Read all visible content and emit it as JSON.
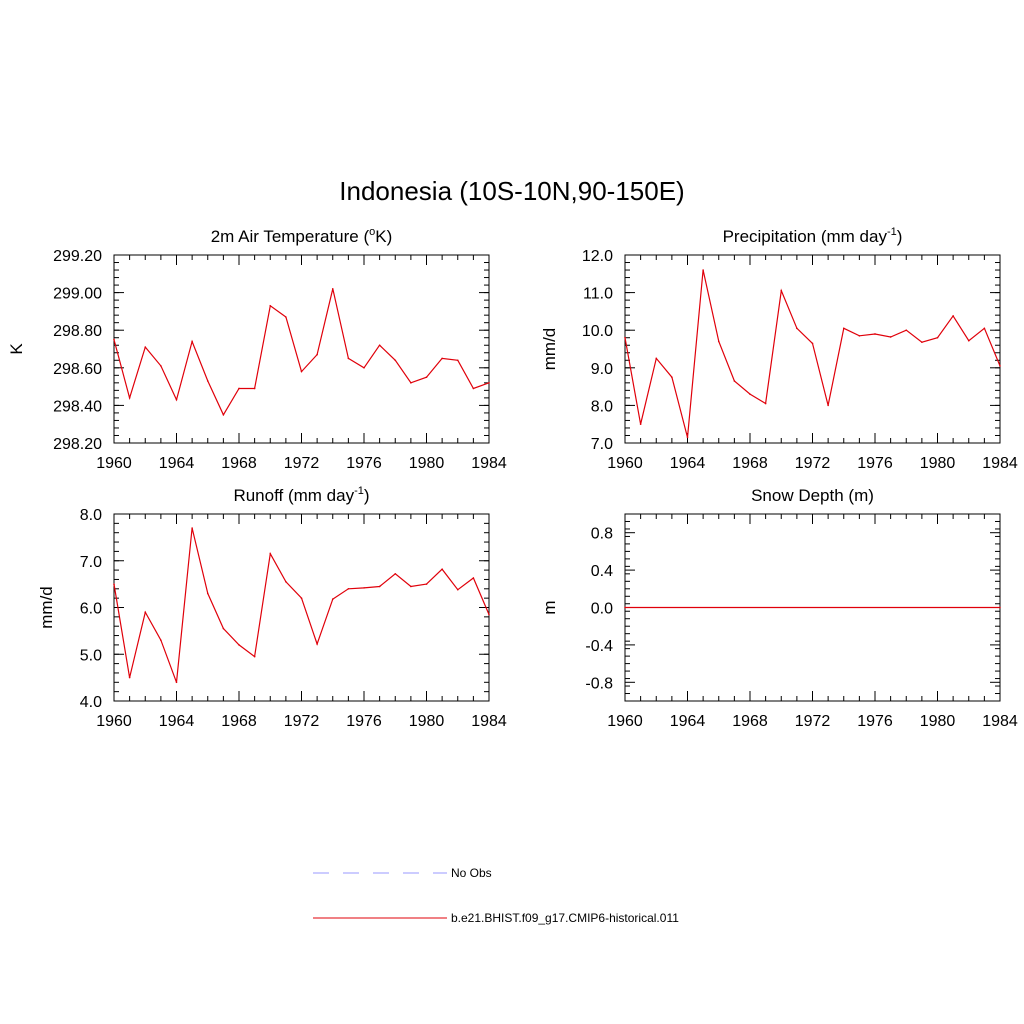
{
  "title": "Indonesia (10S-10N,90-150E)",
  "colors": {
    "series": "#e0000a",
    "obs": "#9999ff",
    "axis": "#000000"
  },
  "chart_data": [
    {
      "type": "line",
      "title": "2m Air Temperature (°K)",
      "title_parts": [
        "2m Air Temperature (",
        "o",
        "K)"
      ],
      "ylabel": "K",
      "xlim": [
        1960,
        1984
      ],
      "ylim": [
        298.2,
        299.2
      ],
      "xticks": [
        "1960",
        "1964",
        "1968",
        "1972",
        "1976",
        "1980",
        "1984"
      ],
      "yticks": [
        "298.20",
        "298.40",
        "298.60",
        "298.80",
        "299.00",
        "299.20"
      ],
      "series": [
        {
          "x": [
            1960,
            1961,
            1962,
            1963,
            1964,
            1965,
            1966,
            1967,
            1968,
            1969,
            1970,
            1971,
            1972,
            1973,
            1974,
            1975,
            1976,
            1977,
            1978,
            1979,
            1980,
            1981,
            1982,
            1983,
            1984
          ],
          "values": [
            298.75,
            298.44,
            298.71,
            298.61,
            298.43,
            298.74,
            298.53,
            298.35,
            298.49,
            298.49,
            298.93,
            298.87,
            298.58,
            298.67,
            299.02,
            298.65,
            298.6,
            298.72,
            298.64,
            298.52,
            298.55,
            298.65,
            298.64,
            298.49,
            298.52
          ]
        }
      ]
    },
    {
      "type": "line",
      "title": "Precipitation (mm day-1)",
      "title_parts": [
        "Precipitation (mm day",
        "-1",
        ")"
      ],
      "ylabel": "mm/d",
      "xlim": [
        1960,
        1984
      ],
      "ylim": [
        7.0,
        12.0
      ],
      "xticks": [
        "1960",
        "1964",
        "1968",
        "1972",
        "1976",
        "1980",
        "1984"
      ],
      "yticks": [
        "7.0",
        "8.0",
        "9.0",
        "10.0",
        "11.0",
        "12.0"
      ],
      "series": [
        {
          "x": [
            1960,
            1961,
            1962,
            1963,
            1964,
            1965,
            1966,
            1967,
            1968,
            1969,
            1970,
            1971,
            1972,
            1973,
            1974,
            1975,
            1976,
            1977,
            1978,
            1979,
            1980,
            1981,
            1982,
            1983,
            1984
          ],
          "values": [
            9.8,
            7.5,
            9.25,
            8.75,
            7.15,
            11.6,
            9.7,
            8.65,
            8.3,
            8.05,
            11.05,
            10.05,
            9.65,
            8.0,
            10.05,
            9.85,
            9.9,
            9.82,
            10.0,
            9.68,
            9.8,
            10.38,
            9.72,
            10.05,
            9.05
          ]
        }
      ]
    },
    {
      "type": "line",
      "title": "Runoff (mm day-1)",
      "title_parts": [
        "Runoff (mm day",
        "-1",
        ")"
      ],
      "ylabel": "mm/d",
      "xlim": [
        1960,
        1984
      ],
      "ylim": [
        4.0,
        8.0
      ],
      "xticks": [
        "1960",
        "1964",
        "1968",
        "1972",
        "1976",
        "1980",
        "1984"
      ],
      "yticks": [
        "4.0",
        "5.0",
        "6.0",
        "7.0",
        "8.0"
      ],
      "series": [
        {
          "x": [
            1960,
            1961,
            1962,
            1963,
            1964,
            1965,
            1966,
            1967,
            1968,
            1969,
            1970,
            1971,
            1972,
            1973,
            1974,
            1975,
            1976,
            1977,
            1978,
            1979,
            1980,
            1981,
            1982,
            1983,
            1984
          ],
          "values": [
            6.5,
            4.5,
            5.9,
            5.3,
            4.4,
            7.7,
            6.3,
            5.55,
            5.2,
            4.95,
            7.15,
            6.55,
            6.2,
            5.22,
            6.18,
            6.4,
            6.42,
            6.45,
            6.72,
            6.45,
            6.5,
            6.82,
            6.38,
            6.63,
            5.85
          ]
        }
      ]
    },
    {
      "type": "line",
      "title": "Snow Depth (m)",
      "title_parts": [
        "Snow Depth (m)",
        "",
        ""
      ],
      "ylabel": "m",
      "xlim": [
        1960,
        1984
      ],
      "ylim": [
        -1.0,
        1.0
      ],
      "xticks": [
        "1960",
        "1964",
        "1968",
        "1972",
        "1976",
        "1980",
        "1984"
      ],
      "yticks": [
        "-0.8",
        "-0.4",
        "0.0",
        "0.4",
        "0.8"
      ],
      "series": [
        {
          "x": [
            1960,
            1984
          ],
          "values": [
            0.0,
            0.0
          ]
        }
      ]
    }
  ],
  "legend": [
    {
      "label": "No Obs",
      "style": "dashed",
      "color": "#9999ff"
    },
    {
      "label": "b.e21.BHIST.f09_g17.CMIP6-historical.011",
      "style": "solid",
      "color": "#e0000a"
    }
  ]
}
